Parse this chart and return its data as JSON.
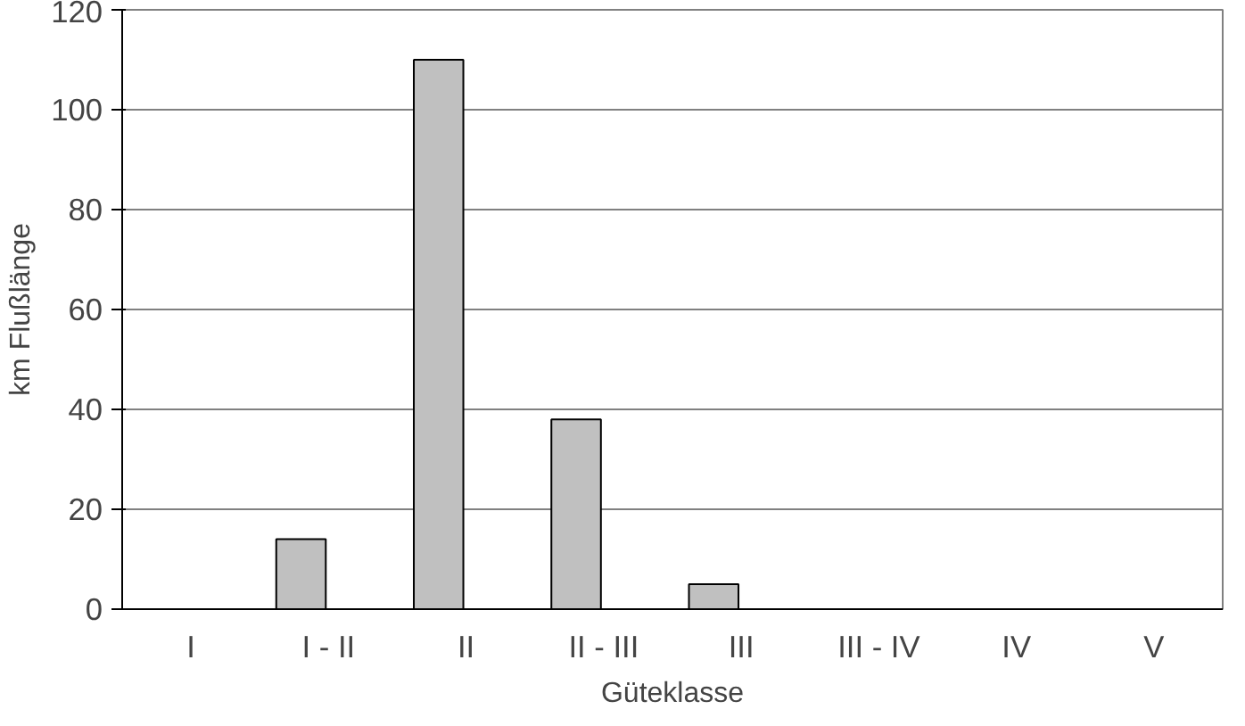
{
  "chart_data": {
    "type": "bar",
    "xlabel": "Güteklasse",
    "ylabel": "km Flußlänge",
    "categories": [
      "I",
      "I - II",
      "II",
      "II - III",
      "III",
      "III - IV",
      "IV",
      "V"
    ],
    "series": [
      {
        "color": "#c0c0c0",
        "values": [
          0,
          14,
          110,
          38,
          5,
          0,
          0,
          0
        ]
      },
      {
        "color": "#661447",
        "values": [
          0,
          0,
          0,
          0,
          0,
          0,
          0,
          0
        ]
      }
    ],
    "ylim": [
      0,
      120
    ],
    "yticks": [
      0,
      20,
      40,
      60,
      80,
      100,
      120
    ],
    "grid": "y"
  }
}
